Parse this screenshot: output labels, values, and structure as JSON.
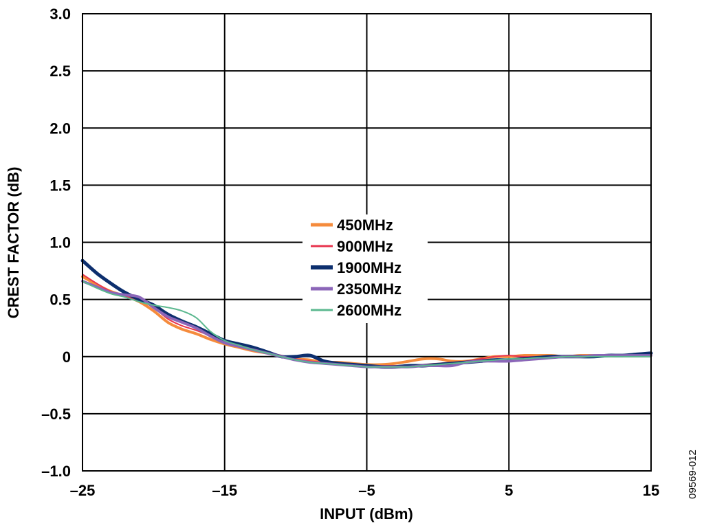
{
  "chart_data": {
    "type": "line",
    "title": "",
    "xlabel": "INPUT (dBm)",
    "ylabel": "CREST FACTOR (dB)",
    "xlim": [
      -25,
      15
    ],
    "ylim": [
      -1.0,
      3.0
    ],
    "x_ticks": [
      -25,
      -15,
      -5,
      5,
      15
    ],
    "x_tick_labels": [
      "–25",
      "–15",
      "–5",
      "5",
      "15"
    ],
    "y_ticks": [
      -1.0,
      -0.5,
      0,
      0.5,
      1.0,
      1.5,
      2.0,
      2.5,
      3.0
    ],
    "y_tick_labels": [
      "–1.0",
      "–0.5",
      "0",
      "0.5",
      "1.0",
      "1.5",
      "2.0",
      "2.5",
      "3.0"
    ],
    "grid": true,
    "legend_position": "center",
    "figure_id": "09569-012",
    "series": [
      {
        "name": "450MHz",
        "color": "#f58b3c",
        "width": 4,
        "x": [
          -25,
          -24,
          -23,
          -22,
          -21,
          -20,
          -19,
          -18,
          -17,
          -16,
          -15,
          -14,
          -13,
          -12,
          -11,
          -10,
          -9,
          -8,
          -7,
          -6,
          -5,
          -4,
          -3,
          -2,
          -1,
          0,
          1,
          2,
          3,
          4,
          5,
          6,
          7,
          8,
          9,
          10,
          11,
          12,
          13,
          14,
          15
        ],
        "y": [
          0.7,
          0.63,
          0.57,
          0.53,
          0.48,
          0.4,
          0.3,
          0.24,
          0.2,
          0.15,
          0.11,
          0.08,
          0.05,
          0.03,
          0.0,
          -0.02,
          -0.03,
          -0.05,
          -0.05,
          -0.06,
          -0.07,
          -0.07,
          -0.06,
          -0.04,
          -0.02,
          -0.02,
          -0.04,
          -0.04,
          -0.02,
          0.0,
          0.0,
          0.01,
          0.01,
          0.01,
          0.0,
          0.01,
          0.01,
          0.01,
          0.01,
          0.01,
          0.01
        ]
      },
      {
        "name": "900MHz",
        "color": "#e8344e",
        "width": 2,
        "x": [
          -25,
          -24,
          -23,
          -22,
          -21,
          -20,
          -19,
          -18,
          -17,
          -16,
          -15,
          -14,
          -13,
          -12,
          -11,
          -10,
          -9,
          -8,
          -7,
          -6,
          -5,
          -4,
          -3,
          -2,
          -1,
          0,
          1,
          2,
          3,
          4,
          5,
          6,
          7,
          8,
          9,
          10,
          11,
          12,
          13,
          14,
          15
        ],
        "y": [
          0.72,
          0.64,
          0.57,
          0.53,
          0.49,
          0.43,
          0.33,
          0.27,
          0.23,
          0.18,
          0.12,
          0.09,
          0.06,
          0.03,
          0.01,
          -0.02,
          -0.04,
          -0.05,
          -0.06,
          -0.07,
          -0.08,
          -0.08,
          -0.08,
          -0.08,
          -0.07,
          -0.06,
          -0.05,
          -0.04,
          -0.02,
          0.0,
          0.01,
          0.0,
          0.0,
          0.0,
          0.01,
          0.01,
          0.01,
          0.01,
          0.01,
          0.01,
          0.01
        ]
      },
      {
        "name": "1900MHz",
        "color": "#0d2f6e",
        "width": 5,
        "x": [
          -25,
          -24,
          -23,
          -22,
          -21,
          -20,
          -19,
          -18,
          -17,
          -16,
          -15,
          -14,
          -13,
          -12,
          -11,
          -10,
          -9,
          -8,
          -7,
          -6,
          -5,
          -4,
          -3,
          -2,
          -1,
          0,
          1,
          2,
          3,
          4,
          5,
          6,
          7,
          8,
          9,
          10,
          11,
          12,
          13,
          14,
          15
        ],
        "y": [
          0.84,
          0.73,
          0.64,
          0.56,
          0.5,
          0.45,
          0.37,
          0.31,
          0.26,
          0.2,
          0.14,
          0.11,
          0.08,
          0.04,
          0.0,
          0.0,
          0.01,
          -0.04,
          -0.06,
          -0.07,
          -0.08,
          -0.09,
          -0.09,
          -0.08,
          -0.08,
          -0.07,
          -0.06,
          -0.05,
          -0.04,
          -0.03,
          -0.03,
          -0.02,
          -0.01,
          0.0,
          0.0,
          0.0,
          0.0,
          0.01,
          0.01,
          0.02,
          0.03
        ]
      },
      {
        "name": "2350MHz",
        "color": "#8b66b8",
        "width": 4,
        "x": [
          -25,
          -24,
          -23,
          -22,
          -21,
          -20,
          -19,
          -18,
          -17,
          -16,
          -15,
          -14,
          -13,
          -12,
          -11,
          -10,
          -9,
          -8,
          -7,
          -6,
          -5,
          -4,
          -3,
          -2,
          -1,
          0,
          1,
          2,
          3,
          4,
          5,
          6,
          7,
          8,
          9,
          10,
          11,
          12,
          13,
          14,
          15
        ],
        "y": [
          0.66,
          0.61,
          0.56,
          0.54,
          0.52,
          0.43,
          0.35,
          0.3,
          0.25,
          0.18,
          0.12,
          0.09,
          0.06,
          0.03,
          0.0,
          -0.03,
          -0.05,
          -0.06,
          -0.07,
          -0.08,
          -0.09,
          -0.09,
          -0.09,
          -0.09,
          -0.08,
          -0.08,
          -0.08,
          -0.05,
          -0.04,
          -0.04,
          -0.04,
          -0.03,
          -0.02,
          -0.01,
          0.0,
          0.0,
          0.01,
          0.01,
          0.01,
          0.01,
          0.01
        ]
      },
      {
        "name": "2600MHz",
        "color": "#5bb88f",
        "width": 2,
        "x": [
          -25,
          -24,
          -23,
          -22,
          -21,
          -20,
          -19,
          -18,
          -17,
          -16,
          -15,
          -14,
          -13,
          -12,
          -11,
          -10,
          -9,
          -8,
          -7,
          -6,
          -5,
          -4,
          -3,
          -2,
          -1,
          0,
          1,
          2,
          3,
          4,
          5,
          6,
          7,
          8,
          9,
          10,
          11,
          12,
          13,
          14,
          15
        ],
        "y": [
          0.66,
          0.6,
          0.55,
          0.52,
          0.48,
          0.45,
          0.43,
          0.4,
          0.34,
          0.22,
          0.14,
          0.1,
          0.06,
          0.03,
          0.0,
          -0.03,
          -0.05,
          -0.06,
          -0.07,
          -0.08,
          -0.09,
          -0.09,
          -0.09,
          -0.09,
          -0.08,
          -0.07,
          -0.06,
          -0.05,
          -0.04,
          -0.03,
          -0.02,
          -0.02,
          -0.01,
          -0.01,
          0.0,
          0.0,
          0.0,
          0.0,
          0.0,
          0.0,
          0.0
        ]
      }
    ]
  }
}
